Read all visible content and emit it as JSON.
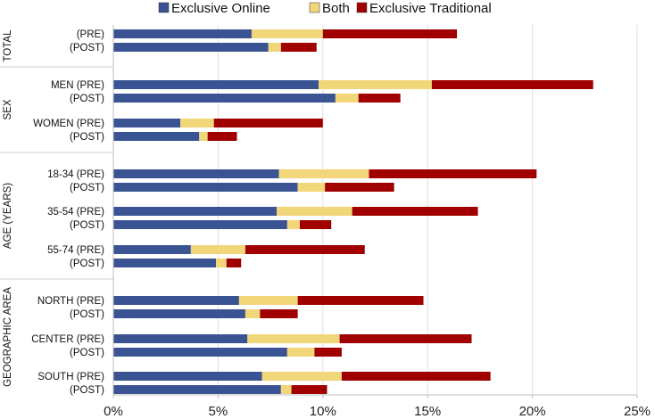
{
  "chart_data": {
    "type": "bar",
    "orientation": "horizontal",
    "stacked": true,
    "title": "",
    "xlabel": "",
    "ylabel": "",
    "xlim": [
      0,
      25
    ],
    "x_ticks": [
      "0%",
      "5%",
      "10%",
      "15%",
      "20%",
      "25%"
    ],
    "grid": "vertical",
    "legend_position": "top",
    "series": [
      {
        "name": "Exclusive Online",
        "color": "#3A5393"
      },
      {
        "name": "Both",
        "color": "#F2D67A"
      },
      {
        "name": "Exclusive  Traditional",
        "color": "#A00000"
      }
    ],
    "groups": [
      {
        "label": "TOTAL",
        "rows": [
          {
            "label": "(PRE)",
            "values": [
              6.6,
              3.4,
              6.4
            ]
          },
          {
            "label": "(POST)",
            "values": [
              7.4,
              0.6,
              1.7
            ]
          }
        ]
      },
      {
        "label": "SEX",
        "rows": [
          {
            "label": "MEN (PRE)",
            "values": [
              9.8,
              5.4,
              7.7
            ]
          },
          {
            "label": "(POST)",
            "values": [
              10.6,
              1.1,
              2.0
            ]
          },
          {
            "label": "WOMEN  (PRE)",
            "values": [
              3.2,
              1.6,
              5.2
            ]
          },
          {
            "label": "(POST)",
            "values": [
              4.1,
              0.4,
              1.4
            ]
          }
        ]
      },
      {
        "label": "AGE (YEARS)",
        "rows": [
          {
            "label": "18-34 (PRE)",
            "values": [
              7.9,
              4.3,
              8.0
            ]
          },
          {
            "label": "(POST)",
            "values": [
              8.8,
              1.3,
              3.3
            ]
          },
          {
            "label": "35-54 (PRE)",
            "values": [
              7.8,
              3.6,
              6.0
            ]
          },
          {
            "label": "(POST)",
            "values": [
              8.3,
              0.6,
              1.5
            ]
          },
          {
            "label": "55-74 (PRE)",
            "values": [
              3.7,
              2.6,
              5.7
            ]
          },
          {
            "label": "(POST)",
            "values": [
              4.9,
              0.5,
              0.7
            ]
          }
        ]
      },
      {
        "label": "GEOGRAPHIC AREA",
        "rows": [
          {
            "label": "NORTH (PRE)",
            "values": [
              6.0,
              2.8,
              6.0
            ]
          },
          {
            "label": "(POST)",
            "values": [
              6.3,
              0.7,
              1.8
            ]
          },
          {
            "label": "CENTER (PRE)",
            "values": [
              6.4,
              4.4,
              6.3
            ]
          },
          {
            "label": "(POST)",
            "values": [
              8.3,
              1.3,
              1.3
            ]
          },
          {
            "label": "SOUTH (PRE)",
            "values": [
              7.1,
              3.8,
              7.1
            ]
          },
          {
            "label": "(POST)",
            "values": [
              8.0,
              0.5,
              1.7
            ]
          }
        ]
      }
    ]
  }
}
